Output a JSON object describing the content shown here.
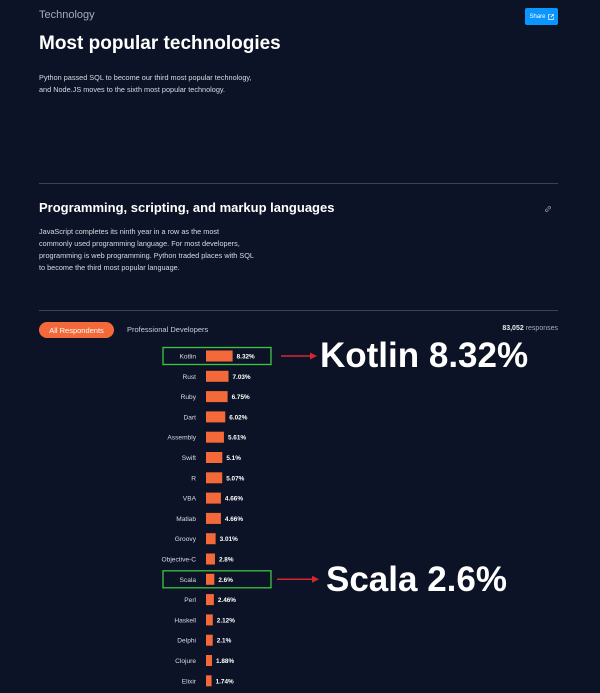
{
  "breadcrumb": "Technology",
  "share_label": "Share",
  "page_title": "Most popular technologies",
  "intro": "Python passed SQL to become our third most popular technology, and Node.JS moves to the sixth most popular technology.",
  "section": {
    "title": "Programming, scripting, and markup languages",
    "description": "JavaScript completes its ninth year in a row as the most commonly used programming language. For most developers, programming is web programming. Python traded places with SQL to become the third most popular language."
  },
  "tabs": [
    {
      "label": "All Respondents",
      "active": true
    },
    {
      "label": "Professional Developers",
      "active": false
    }
  ],
  "responses": {
    "count": "83,052",
    "label": "responses"
  },
  "colors": {
    "bar": "#f4693a",
    "highlight_box": "#3cc542",
    "arrow": "#d8262e",
    "accent": "#0a95ff"
  },
  "chart_data": {
    "type": "bar",
    "orientation": "horizontal",
    "categories": [
      "Kotlin",
      "Rust",
      "Ruby",
      "Dart",
      "Assembly",
      "Swift",
      "R",
      "VBA",
      "Matlab",
      "Groovy",
      "Objective-C",
      "Scala",
      "Perl",
      "Haskell",
      "Delphi",
      "Clojure",
      "Elixir"
    ],
    "values": [
      8.32,
      7.03,
      6.75,
      6.02,
      5.61,
      5.1,
      5.07,
      4.66,
      4.66,
      3.01,
      2.8,
      2.6,
      2.46,
      2.12,
      2.1,
      1.88,
      1.74
    ],
    "labels": [
      "8.32%",
      "7.03%",
      "6.75%",
      "6.02%",
      "5.61%",
      "5.1%",
      "5.07%",
      "4.66%",
      "4.66%",
      "3.01%",
      "2.8%",
      "2.6%",
      "2.46%",
      "2.12%",
      "2.1%",
      "1.88%",
      "1.74%"
    ],
    "unit": "%",
    "highlighted": [
      "Kotlin",
      "Scala"
    ]
  },
  "annotations": [
    {
      "target": "Kotlin",
      "text": "Kotlin 8.32%"
    },
    {
      "target": "Scala",
      "text": "Scala 2.6%"
    }
  ]
}
